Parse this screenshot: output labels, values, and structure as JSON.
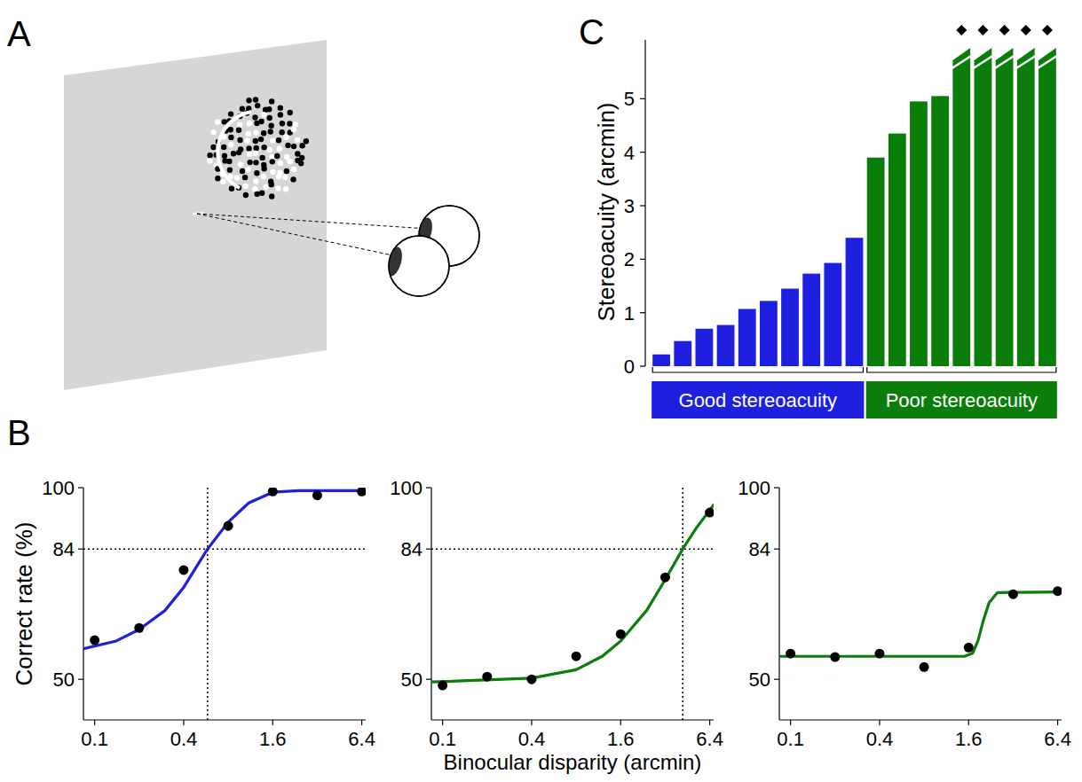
{
  "panel_labels": [
    "A",
    "B",
    "C"
  ],
  "chart_data": [
    {
      "type": "line",
      "y_label": "Correct rate (%)",
      "log": "x",
      "xlim": [
        0.084,
        6.8
      ],
      "ylim": [
        39.4,
        100
      ],
      "xticks": [
        0.1,
        0.4,
        1.6,
        6.4
      ],
      "yticks": [
        50,
        84,
        100
      ],
      "reference_lines": {
        "x": 0.58,
        "y": 84
      },
      "series": [
        {
          "type": "scatter",
          "marker": "circle",
          "color": "#000000",
          "x": [
            0.1,
            0.2,
            0.4,
            0.8,
            1.6,
            3.2,
            6.4
          ],
          "values": [
            60.2,
            63.4,
            78.5,
            90,
            99,
            98,
            99
          ]
        },
        {
          "type": "line",
          "line_style": "solid",
          "color": "#1f1fe0",
          "x": [
            0.084,
            0.14,
            0.2,
            0.3,
            0.4,
            0.58,
            0.8,
            1.1,
            1.6,
            2.4,
            6.8
          ],
          "values": [
            58,
            60,
            63,
            68,
            74,
            84,
            91,
            96,
            98.8,
            99.2,
            99.2
          ]
        }
      ]
    },
    {
      "type": "line",
      "x_label": "Binocular disparity (arcmin)",
      "log": "x",
      "xlim": [
        0.084,
        6.8
      ],
      "ylim": [
        39.4,
        100
      ],
      "xticks": [
        0.1,
        0.4,
        1.6,
        6.4
      ],
      "yticks": [
        50,
        84,
        100
      ],
      "reference_lines": {
        "x": 4.2,
        "y": 84
      },
      "series": [
        {
          "type": "scatter",
          "marker": "circle",
          "color": "#000000",
          "x": [
            0.1,
            0.2,
            0.4,
            0.8,
            1.6,
            3.2,
            6.4
          ],
          "values": [
            48.4,
            50.7,
            50,
            56,
            61.8,
            76.6,
            93.5
          ]
        },
        {
          "type": "line",
          "line_style": "solid",
          "color": "#0b7d0b",
          "x": [
            0.084,
            0.4,
            0.8,
            1.2,
            1.6,
            2.4,
            3.2,
            4.2,
            5.2,
            6.8
          ],
          "values": [
            49.3,
            50.3,
            52.5,
            56,
            60,
            68,
            76,
            84,
            89.5,
            95.5
          ]
        }
      ]
    },
    {
      "type": "line",
      "log": "x",
      "xlim": [
        0.084,
        6.8
      ],
      "ylim": [
        39.4,
        100
      ],
      "xticks": [
        0.1,
        0.4,
        1.6,
        6.4
      ],
      "yticks": [
        50,
        84,
        100
      ],
      "series": [
        {
          "type": "scatter",
          "marker": "circle",
          "color": "#000000",
          "x": [
            0.1,
            0.2,
            0.4,
            0.8,
            1.6,
            3.2,
            6.4
          ],
          "values": [
            56.7,
            55.8,
            56.7,
            53.2,
            58.3,
            72.2,
            73
          ]
        },
        {
          "type": "line",
          "line_style": "solid",
          "color": "#0b7d0b",
          "x": [
            0.084,
            1.5,
            1.7,
            1.85,
            2.0,
            2.2,
            2.5,
            6.8
          ],
          "values": [
            56,
            56,
            56.8,
            60,
            65,
            70,
            72.6,
            72.8
          ]
        }
      ]
    },
    {
      "type": "bar",
      "y_label": "Stereoacuity (arcmin)",
      "tick_labels": "y",
      "ylim": [
        0,
        6.1
      ],
      "yticks": [
        0,
        1,
        2,
        3,
        4,
        5
      ],
      "categories": [
        null,
        null,
        null,
        null,
        null,
        null,
        null,
        null,
        null,
        null,
        null,
        null,
        null,
        null,
        null,
        null,
        null,
        null,
        null
      ],
      "values": [
        0.22,
        0.47,
        0.7,
        0.77,
        1.07,
        1.22,
        1.45,
        1.73,
        1.93,
        2.4,
        3.9,
        4.35,
        4.95,
        5.05,
        5.95,
        5.95,
        5.95,
        5.95,
        5.95
      ],
      "colors": [
        "#1f1fe0",
        "#1f1fe0",
        "#1f1fe0",
        "#1f1fe0",
        "#1f1fe0",
        "#1f1fe0",
        "#1f1fe0",
        "#1f1fe0",
        "#1f1fe0",
        "#1f1fe0",
        "#0b7d0b",
        "#0b7d0b",
        "#0b7d0b",
        "#0b7d0b",
        "#0b7d0b",
        "#0b7d0b",
        "#0b7d0b",
        "#0b7d0b",
        "#0b7d0b"
      ],
      "beyond_range": [
        false,
        false,
        false,
        false,
        false,
        false,
        false,
        false,
        false,
        false,
        false,
        false,
        false,
        false,
        true,
        true,
        true,
        true,
        true
      ],
      "groups": [
        {
          "label": "Good stereoacuity",
          "color": "#1f1fe0",
          "first": 0,
          "last": 9
        },
        {
          "label": "Poor stereoacuity",
          "color": "#0b7d0b",
          "first": 10,
          "last": 18
        }
      ]
    }
  ]
}
